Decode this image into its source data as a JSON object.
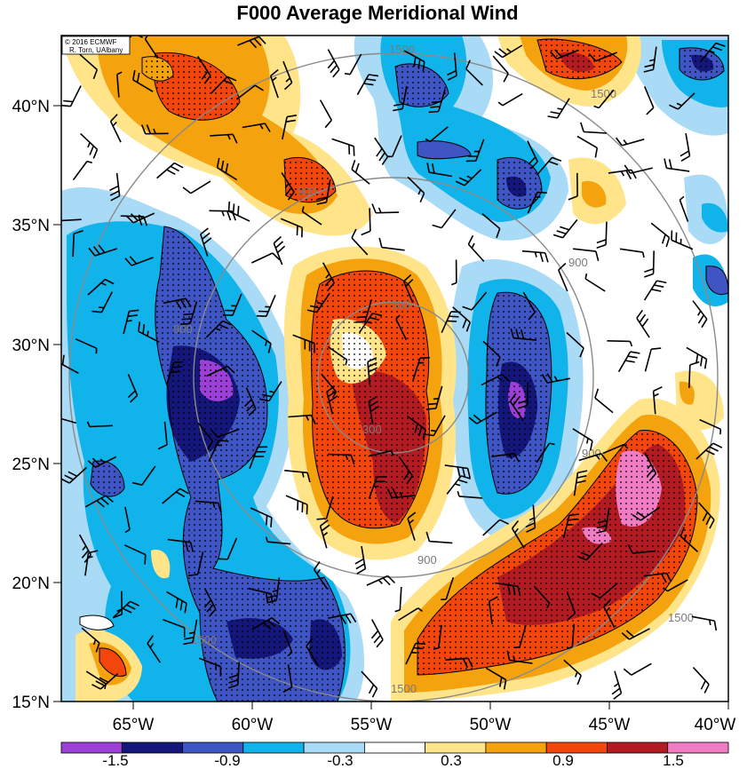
{
  "title": "F000 Average Meridional Wind",
  "copyright": {
    "line1": "© 2016 ECMWF",
    "line2": "R. Torn, UAlbany"
  },
  "lat_ticks": [
    "40°N",
    "35°N",
    "30°N",
    "25°N",
    "20°N",
    "15°N"
  ],
  "lon_ticks": [
    "65°W",
    "60°W",
    "55°W",
    "50°W",
    "45°W",
    "40°W"
  ],
  "colorbar": {
    "tick_labels": [
      "-1.5",
      "-0.9",
      "-0.3",
      "0.3",
      "0.9",
      "1.5"
    ],
    "colors": [
      "#9b3fd6",
      "#14167a",
      "#3f55c4",
      "#10b3ea",
      "#a9dbf6",
      "#ffffff",
      "#ffe48a",
      "#f5a20f",
      "#f2460d",
      "#b31b22",
      "#f07cc4"
    ]
  },
  "contour_labels": [
    "300",
    "900",
    "1500"
  ],
  "chart_data": {
    "type": "heatmap",
    "title": "F000 Average Meridional Wind",
    "lon_range": [
      -68,
      -40
    ],
    "lat_range": [
      15,
      43
    ],
    "levels": [
      -1.5,
      -1.2,
      -0.9,
      -0.6,
      -0.3,
      0.3,
      0.6,
      0.9,
      1.2,
      1.5
    ],
    "range_rings_km": [
      300,
      900,
      1500
    ],
    "center": {
      "lon": -54,
      "lat": 29
    }
  }
}
